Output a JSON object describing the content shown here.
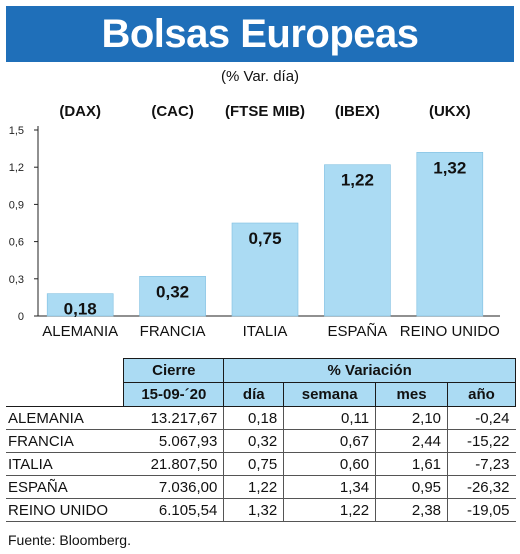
{
  "header": {
    "title": "Bolsas Europeas",
    "subtitle": "(% Var. día)"
  },
  "colors": {
    "banner": "#1f6fb9",
    "bar": "#abdbf3",
    "table_header": "#abdbf3"
  },
  "chart_data": {
    "type": "bar",
    "title": "Bolsas Europeas",
    "subtitle": "(% Var. día)",
    "indices": [
      "(DAX)",
      "(CAC)",
      "(FTSE MIB)",
      "(IBEX)",
      "(UKX)"
    ],
    "categories": [
      "ALEMANIA",
      "FRANCIA",
      "ITALIA",
      "ESPAÑA",
      "REINO UNIDO"
    ],
    "values": [
      0.18,
      0.32,
      0.75,
      1.22,
      1.32
    ],
    "value_labels": [
      "0,18",
      "0,32",
      "0,75",
      "1,22",
      "1,32"
    ],
    "ylim": [
      0,
      1.5
    ],
    "yticks": [
      0,
      0.3,
      0.6,
      0.9,
      1.2,
      1.5
    ],
    "ytick_labels": [
      "0",
      "0,3",
      "0,6",
      "0,9",
      "1,2",
      "1,5"
    ],
    "grid": false,
    "legend": "none"
  },
  "table": {
    "group_headers": {
      "cierre": "Cierre",
      "variacion": "% Variación"
    },
    "col_headers": {
      "date": "15-09-´20",
      "dia": "día",
      "semana": "semana",
      "mes": "mes",
      "ano": "año"
    },
    "rows": [
      {
        "name": "ALEMANIA",
        "cierre": "13.217,67",
        "dia": "0,18",
        "semana": "0,11",
        "mes": "2,10",
        "ano": "-0,24"
      },
      {
        "name": "FRANCIA",
        "cierre": "5.067,93",
        "dia": "0,32",
        "semana": "0,67",
        "mes": "2,44",
        "ano": "-15,22"
      },
      {
        "name": "ITALIA",
        "cierre": "21.807,50",
        "dia": "0,75",
        "semana": "0,60",
        "mes": "1,61",
        "ano": "-7,23"
      },
      {
        "name": "ESPAÑA",
        "cierre": "7.036,00",
        "dia": "1,22",
        "semana": "1,34",
        "mes": "0,95",
        "ano": "-26,32"
      },
      {
        "name": "REINO UNIDO",
        "cierre": "6.105,54",
        "dia": "1,32",
        "semana": "1,22",
        "mes": "2,38",
        "ano": "-19,05"
      }
    ]
  },
  "source": "Fuente: Bloomberg."
}
